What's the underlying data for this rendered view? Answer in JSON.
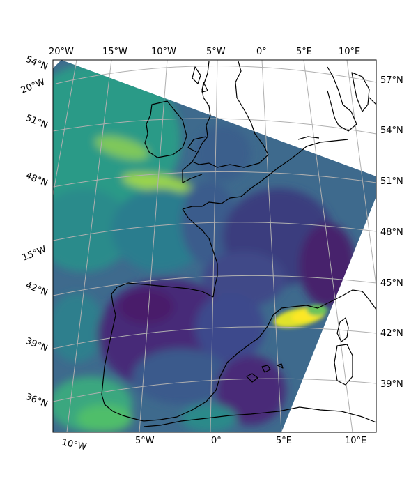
{
  "map": {
    "colormap": "viridis",
    "colormap_colors": [
      "#440154",
      "#3b528b",
      "#21918c",
      "#5ec962",
      "#fde725"
    ],
    "grid_color": "#b0b0b0",
    "coastline_color": "#000000",
    "background_color": "#ffffff",
    "labels": {
      "top": [
        "20°W",
        "15°W",
        "10°W",
        "5°W",
        "0°",
        "5°E",
        "10°E"
      ],
      "right": [
        "57°N",
        "54°N",
        "51°N",
        "48°N",
        "45°N",
        "42°N",
        "39°N"
      ],
      "bottom": [
        "10°W",
        "5°W",
        "0°",
        "5°E",
        "10°E"
      ],
      "left": [
        "54°N",
        "20°W",
        "51°N",
        "48°N",
        "15°W",
        "42°N",
        "39°N",
        "36°N"
      ]
    }
  }
}
